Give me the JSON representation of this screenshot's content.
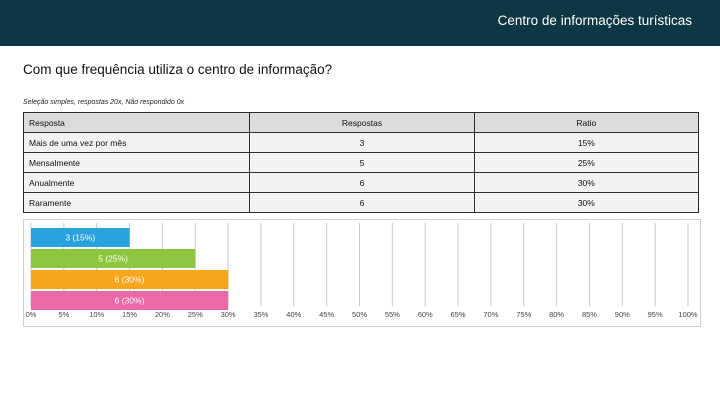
{
  "header": {
    "title": "Centro de informações turísticas"
  },
  "question": {
    "title": "Com que frequência utiliza o centro de informação?"
  },
  "summary": {
    "text": "Seleção simples, respostas 20x, Não respondido 0x"
  },
  "table": {
    "headers": [
      "Resposta",
      "Respostas",
      "Ratio"
    ],
    "rows": [
      [
        "Mais de uma vez por mês",
        "3",
        "15%"
      ],
      [
        "Mensalmente",
        "5",
        "25%"
      ],
      [
        "Anualmente",
        "6",
        "30%"
      ],
      [
        "Raramente",
        "6",
        "30%"
      ]
    ]
  },
  "chart_data": {
    "type": "bar",
    "orientation": "horizontal",
    "categories": [
      "Mais de uma vez por mês",
      "Mensalmente",
      "Anualmente",
      "Raramente"
    ],
    "values": [
      15,
      25,
      30,
      30
    ],
    "data_labels": [
      "3 (15%)",
      "5 (25%)",
      "6 (30%)",
      "6 (30%)"
    ],
    "colors": [
      "#29a3e0",
      "#8cc63e",
      "#f7a51d",
      "#ea6aa7"
    ],
    "xlim": [
      0,
      100
    ],
    "x_ticks": [
      "0%",
      "5%",
      "10%",
      "15%",
      "20%",
      "25%",
      "30%",
      "35%",
      "40%",
      "45%",
      "50%",
      "55%",
      "60%",
      "65%",
      "70%",
      "75%",
      "80%",
      "85%",
      "90%",
      "95%",
      "100%"
    ],
    "grid": true,
    "legend": "none"
  }
}
